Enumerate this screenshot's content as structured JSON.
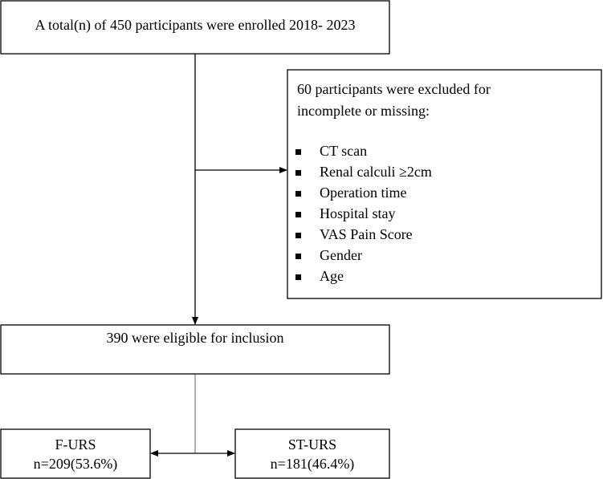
{
  "nodes": [
    {
      "label": "A total(n) of 450 participants were enrolled 2018- 2023"
    },
    {
      "lines": [
        "60 participants  were excluded for",
        "incomplete or missing:"
      ],
      "items": [
        "CT scan",
        "Renal calculi ≥2cm",
        "Operation time",
        "Hospital stay",
        "VAS Pain Score",
        "Gender",
        "Age"
      ]
    },
    {
      "label": "390 were eligible for inclusion"
    },
    {
      "lines": [
        "F-URS",
        "n=209(53.6%)"
      ]
    },
    {
      "lines": [
        "ST-URS",
        "n=181(46.4%)"
      ]
    }
  ]
}
